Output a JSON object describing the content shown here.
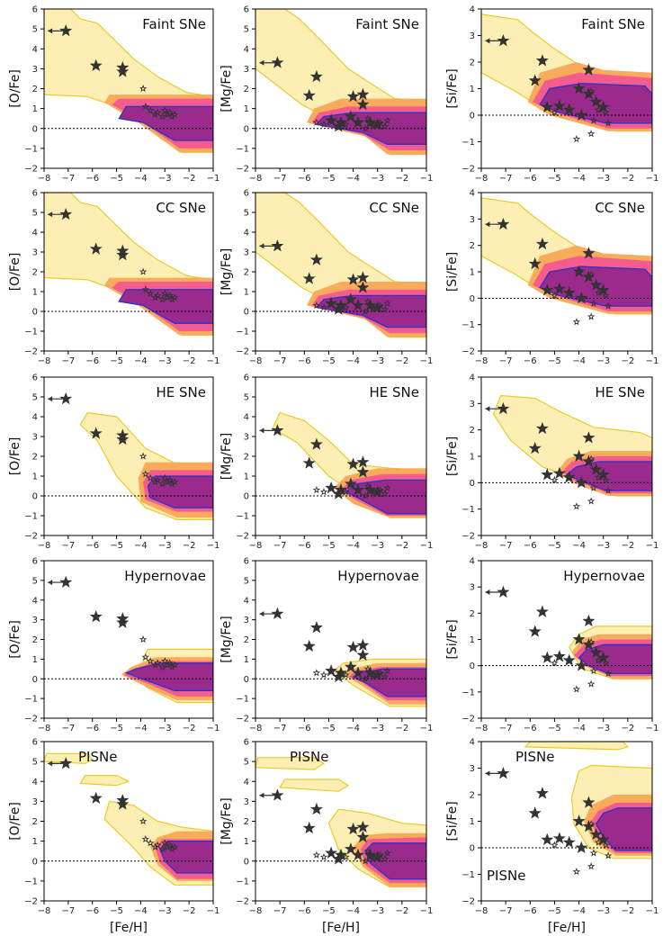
{
  "figure": {
    "rows": [
      "Faint SNe",
      "CC SNe",
      "HE SNe",
      "Hypernovae",
      "PISNe"
    ],
    "extra_label": "PISNe",
    "xlabel": "[Fe/H]",
    "ylabels": [
      "[O/Fe]",
      "[Mg/Fe]",
      "[Si/Fe]"
    ]
  },
  "colors": {
    "outer": "#fdeeb0",
    "outer_edge": "#e9c81e",
    "mid": "#f9ab5c",
    "inner": "#f45c8e",
    "core": "#9a2b8c",
    "core_edge": "#2b33c8",
    "star": "#333333",
    "refline": "#000000"
  },
  "chart_data": [
    {
      "type": "scatter",
      "panel": "O",
      "xlabel": "[Fe/H]",
      "ylabel": "[O/Fe]",
      "xlim": [
        -8,
        -1
      ],
      "ylim": [
        -2,
        6
      ],
      "xticks": [
        -8,
        -7,
        -6,
        -5,
        -4,
        -3,
        -2,
        -1
      ],
      "yticks": [
        -2,
        -1,
        0,
        1,
        2,
        3,
        4,
        5,
        6
      ],
      "observations": {
        "big": [
          [
            -7.1,
            4.9
          ],
          [
            -5.85,
            3.15
          ],
          [
            -4.75,
            3.05
          ],
          [
            -4.75,
            2.85
          ]
        ],
        "upper_limit_arrows": [
          [
            -7.1,
            4.9
          ]
        ],
        "small": [
          [
            -3.9,
            2.0
          ],
          [
            -3.6,
            0.9
          ],
          [
            -3.3,
            0.8
          ],
          [
            -3.1,
            0.6
          ],
          [
            -3.0,
            0.9
          ],
          [
            -2.9,
            0.7
          ],
          [
            -2.8,
            0.8
          ],
          [
            -2.7,
            0.6
          ],
          [
            -2.6,
            0.7
          ],
          [
            -3.4,
            0.7
          ],
          [
            -3.8,
            1.1
          ]
        ]
      },
      "models": [
        {
          "name": "Faint SNe",
          "ylim": [
            -2,
            6
          ]
        },
        {
          "name": "CC SNe",
          "ylim": [
            -2,
            6
          ]
        },
        {
          "name": "HE SNe",
          "ylim": [
            -2,
            6
          ]
        },
        {
          "name": "Hypernovae",
          "ylim": [
            -2,
            6
          ]
        },
        {
          "name": "PISNe",
          "ylim": [
            -2,
            6
          ]
        }
      ]
    },
    {
      "type": "scatter",
      "panel": "Mg",
      "xlabel": "[Fe/H]",
      "ylabel": "[Mg/Fe]",
      "xlim": [
        -8,
        -1
      ],
      "ylim": [
        -2,
        6
      ],
      "xticks": [
        -8,
        -7,
        -6,
        -5,
        -4,
        -3,
        -2,
        -1
      ],
      "yticks": [
        -2,
        -1,
        0,
        1,
        2,
        3,
        4,
        5,
        6
      ],
      "observations": {
        "big": [
          [
            -7.1,
            3.3
          ],
          [
            -5.5,
            2.6
          ],
          [
            -5.8,
            1.65
          ],
          [
            -4.0,
            1.6
          ],
          [
            -3.6,
            1.7
          ],
          [
            -3.6,
            1.2
          ],
          [
            -4.9,
            0.4
          ],
          [
            -4.5,
            0.3
          ],
          [
            -4.1,
            0.6
          ],
          [
            -3.8,
            0.3
          ],
          [
            -3.3,
            0.3
          ],
          [
            -3.0,
            0.2
          ],
          [
            -4.6,
            0.1
          ]
        ],
        "small": [
          [
            -3.4,
            0.5
          ],
          [
            -3.2,
            0.1
          ],
          [
            -2.9,
            0.3
          ],
          [
            -2.7,
            0.1
          ],
          [
            -2.6,
            0.4
          ],
          [
            -3.5,
            0.0
          ],
          [
            -4.3,
            0.2
          ],
          [
            -5.2,
            0.2
          ],
          [
            -5.5,
            0.3
          ]
        ]
      },
      "models": [
        {
          "name": "Faint SNe",
          "ylim": [
            -2,
            6
          ]
        },
        {
          "name": "CC SNe",
          "ylim": [
            -2,
            6
          ]
        },
        {
          "name": "HE SNe",
          "ylim": [
            -2,
            6
          ]
        },
        {
          "name": "Hypernovae",
          "ylim": [
            -2,
            6
          ]
        },
        {
          "name": "PISNe",
          "ylim": [
            -2,
            6
          ]
        }
      ]
    },
    {
      "type": "scatter",
      "panel": "Si",
      "xlabel": "[Fe/H]",
      "ylabel": "[Si/Fe]",
      "xlim": [
        -8,
        -1
      ],
      "ylim": [
        -2,
        4
      ],
      "xticks": [
        -8,
        -7,
        -6,
        -5,
        -4,
        -3,
        -2,
        -1
      ],
      "yticks": [
        -2,
        -1,
        0,
        1,
        2,
        3,
        4
      ],
      "observations": {
        "big": [
          [
            -7.1,
            2.8
          ],
          [
            -5.5,
            2.05
          ],
          [
            -5.8,
            1.3
          ],
          [
            -4.0,
            1.0
          ],
          [
            -3.6,
            1.7
          ],
          [
            -3.6,
            0.8
          ],
          [
            -5.3,
            0.3
          ],
          [
            -4.8,
            0.35
          ],
          [
            -4.4,
            0.2
          ],
          [
            -3.3,
            0.5
          ],
          [
            -3.0,
            0.3
          ],
          [
            -3.9,
            0.0
          ]
        ],
        "small": [
          [
            -3.5,
            0.9
          ],
          [
            -3.2,
            0.2
          ],
          [
            -2.9,
            0.1
          ],
          [
            -2.8,
            -0.3
          ],
          [
            -3.4,
            -0.2
          ],
          [
            -4.1,
            -0.9
          ],
          [
            -3.5,
            -0.7
          ],
          [
            -5.0,
            0.1
          ]
        ]
      },
      "models": [
        {
          "name": "Faint SNe",
          "ylim": [
            -2,
            4
          ]
        },
        {
          "name": "CC SNe",
          "ylim": [
            -2,
            4
          ]
        },
        {
          "name": "HE SNe",
          "ylim": [
            -2,
            4
          ]
        },
        {
          "name": "Hypernovae",
          "ylim": [
            -2,
            4
          ]
        },
        {
          "name": "PISNe",
          "ylim": [
            -2,
            4
          ]
        }
      ]
    }
  ]
}
